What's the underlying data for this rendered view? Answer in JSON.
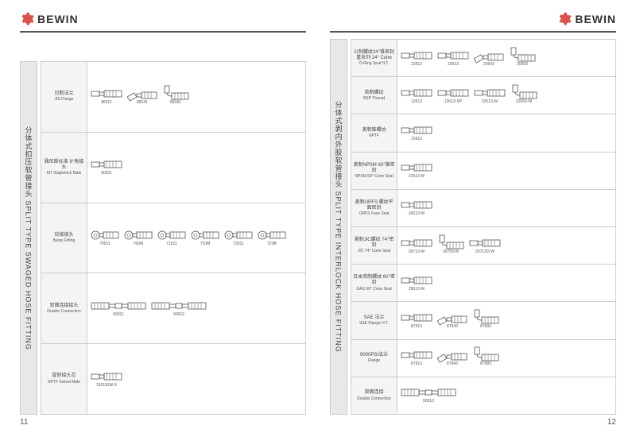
{
  "brand": "BEWIN",
  "colors": {
    "gear": "#d9534f",
    "text": "#333333",
    "border": "#cccccc",
    "sideFill": "#e8e8e8",
    "labelFill": "#f4f4f4"
  },
  "pages": {
    "left": {
      "number": "11",
      "sideTitle": "分体式扣压软管接头 SPLIT TYPE SWAGED HOSE FITTING",
      "rows": [
        {
          "label_cn": "日制法兰",
          "label_en": "JIS Flange",
          "items": [
            {
              "code": "88111",
              "shape": "straight"
            },
            {
              "code": "88141",
              "shape": "bend45"
            },
            {
              "code": "88191",
              "shape": "bend90"
            }
          ]
        },
        {
          "label_cn": "雅尼斯标准 8°角接头",
          "label_en": "MT Staplelock Male",
          "items": [
            {
              "code": "60011",
              "shape": "straight"
            }
          ]
        },
        {
          "label_cn": "铰接接头",
          "label_en": "Banjo Fitting",
          "items": [
            {
              "code": "70011",
              "shape": "banjo"
            },
            {
              "code": "700M",
              "shape": "banjo"
            },
            {
              "code": "71011",
              "shape": "banjo"
            },
            {
              "code": "710M",
              "shape": "banjo"
            },
            {
              "code": "72011",
              "shape": "banjo"
            },
            {
              "code": "720B",
              "shape": "banjo"
            }
          ]
        },
        {
          "label_cn": "双面连接接头",
          "label_en": "Double Connection",
          "items": [
            {
              "code": "90011",
              "shape": "double"
            },
            {
              "code": "90012",
              "shape": "double"
            }
          ]
        },
        {
          "label_cn": "旋转接头芯",
          "label_en": "NPTF Swivel Male",
          "items": [
            {
              "code": "150110W-S",
              "shape": "straight"
            }
          ]
        }
      ]
    },
    "right": {
      "number": "12",
      "sideTitle": "分体式剥内外胶软管接头 SPLIT TYPE INTERLOCK HOSE FITTING",
      "rows": [
        {
          "label_cn": "公制螺纹24°锥密封重系列 24° Cone",
          "label_en": "O-Ring Seal H.T.",
          "items": [
            {
              "code": "10513",
              "shape": "straight"
            },
            {
              "code": "20513",
              "shape": "straight"
            },
            {
              "code": "20543",
              "shape": "bend45"
            },
            {
              "code": "20593",
              "shape": "bend90"
            }
          ]
        },
        {
          "label_cn": "英制螺纹",
          "label_en": "BSP Thread",
          "items": [
            {
              "code": "12613",
              "shape": "straight"
            },
            {
              "code": "13013-SP",
              "shape": "straight"
            },
            {
              "code": "22613-W",
              "shape": "straight"
            },
            {
              "code": "22693-W",
              "shape": "bend90"
            }
          ]
        },
        {
          "label_cn": "美制锥螺纹",
          "label_en": "NPTF",
          "items": [
            {
              "code": "15613",
              "shape": "straight"
            }
          ]
        },
        {
          "label_cn": "美制NPSM 60°锥密封",
          "label_en": "NPSM 60° Cone Seal",
          "items": [
            {
              "code": "21613-W",
              "shape": "straight"
            }
          ]
        },
        {
          "label_cn": "美制ORFS 螺纹平面密封",
          "label_en": "ORFS Face Seal",
          "items": [
            {
              "code": "24213-W",
              "shape": "straight"
            }
          ]
        },
        {
          "label_cn": "美制JIC螺纹 74°密封",
          "label_en": "JIC 74° Cone Seal",
          "items": [
            {
              "code": "26713-W",
              "shape": "straight"
            },
            {
              "code": "26793-W",
              "shape": "bend90"
            },
            {
              "code": "26713D-W",
              "shape": "straight"
            }
          ]
        },
        {
          "label_cn": "日本英制螺纹 60°密封",
          "label_en": "GAS 60° Cone Seal",
          "items": [
            {
              "code": "29613-W",
              "shape": "straight"
            }
          ]
        },
        {
          "label_cn": "SAE 法兰",
          "label_en": "SAE Flange H.T.",
          "items": [
            {
              "code": "87613",
              "shape": "straight"
            },
            {
              "code": "87643",
              "shape": "bend45"
            },
            {
              "code": "87693",
              "shape": "bend90"
            }
          ]
        },
        {
          "label_cn": "9000PSI法兰",
          "label_en": "Flange",
          "items": [
            {
              "code": "87913",
              "shape": "straight"
            },
            {
              "code": "87943",
              "shape": "bend45"
            },
            {
              "code": "87993",
              "shape": "bend90"
            }
          ]
        },
        {
          "label_cn": "双面连接",
          "label_en": "Double Connection",
          "items": [
            {
              "code": "90013",
              "shape": "double"
            }
          ]
        }
      ]
    }
  }
}
